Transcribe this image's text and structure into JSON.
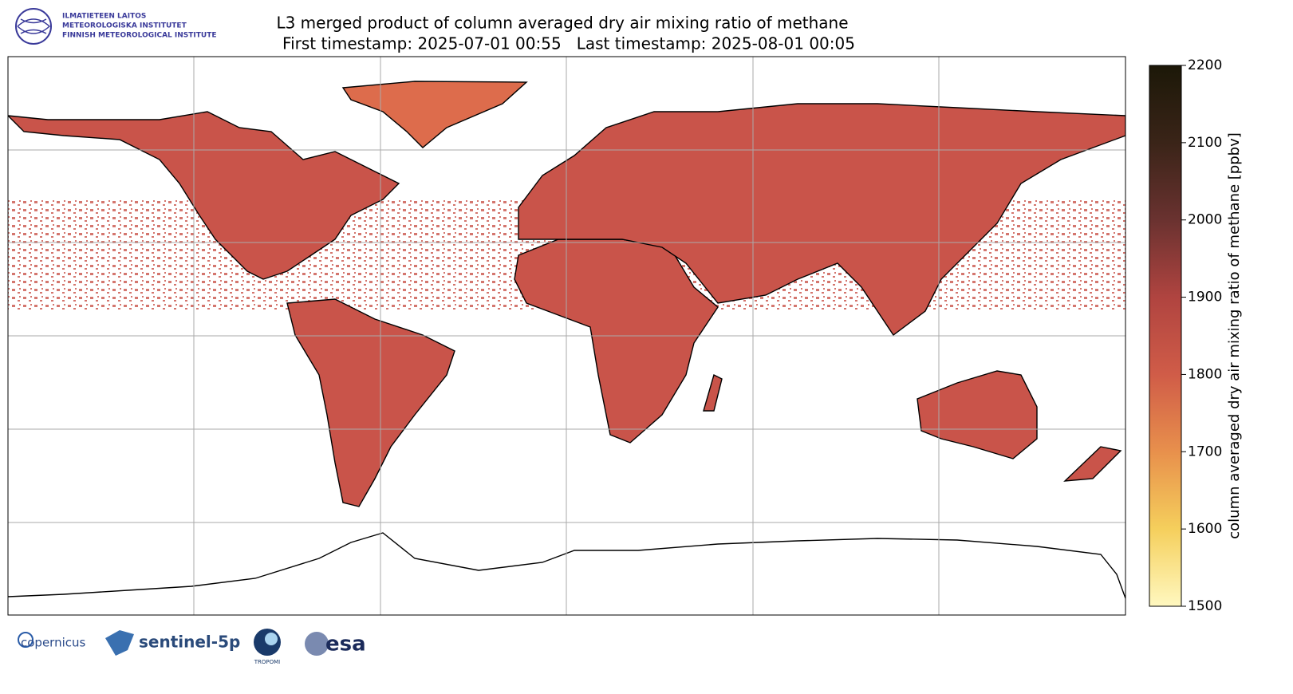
{
  "header": {
    "title": "L3 merged product of column averaged dry air mixing ratio of methane",
    "subtitle": "First timestamp: 2025-07-01 00:55   Last timestamp: 2025-08-01 00:05",
    "institute": [
      "ILMATIETEEN LAITOS",
      "METEOROLOGISKA INSTITUTET",
      "FINNISH METEOROLOGICAL INSTITUTE"
    ]
  },
  "colorbar": {
    "label": "column averaged dry air mixing ratio of methane [ppbv]",
    "lim": [
      1500,
      2200
    ],
    "ticks": [
      1500,
      1600,
      1700,
      1800,
      1900,
      2000,
      2100,
      2200
    ],
    "colors": [
      "#fff8c0",
      "#f5cf5c",
      "#e8904c",
      "#d05c48",
      "#b04440",
      "#6a3230",
      "#3a2418",
      "#1c1808"
    ]
  },
  "footer": {
    "logos": [
      "copernicus",
      "sentinel-5p",
      "TROPOMI",
      "esa"
    ]
  }
}
